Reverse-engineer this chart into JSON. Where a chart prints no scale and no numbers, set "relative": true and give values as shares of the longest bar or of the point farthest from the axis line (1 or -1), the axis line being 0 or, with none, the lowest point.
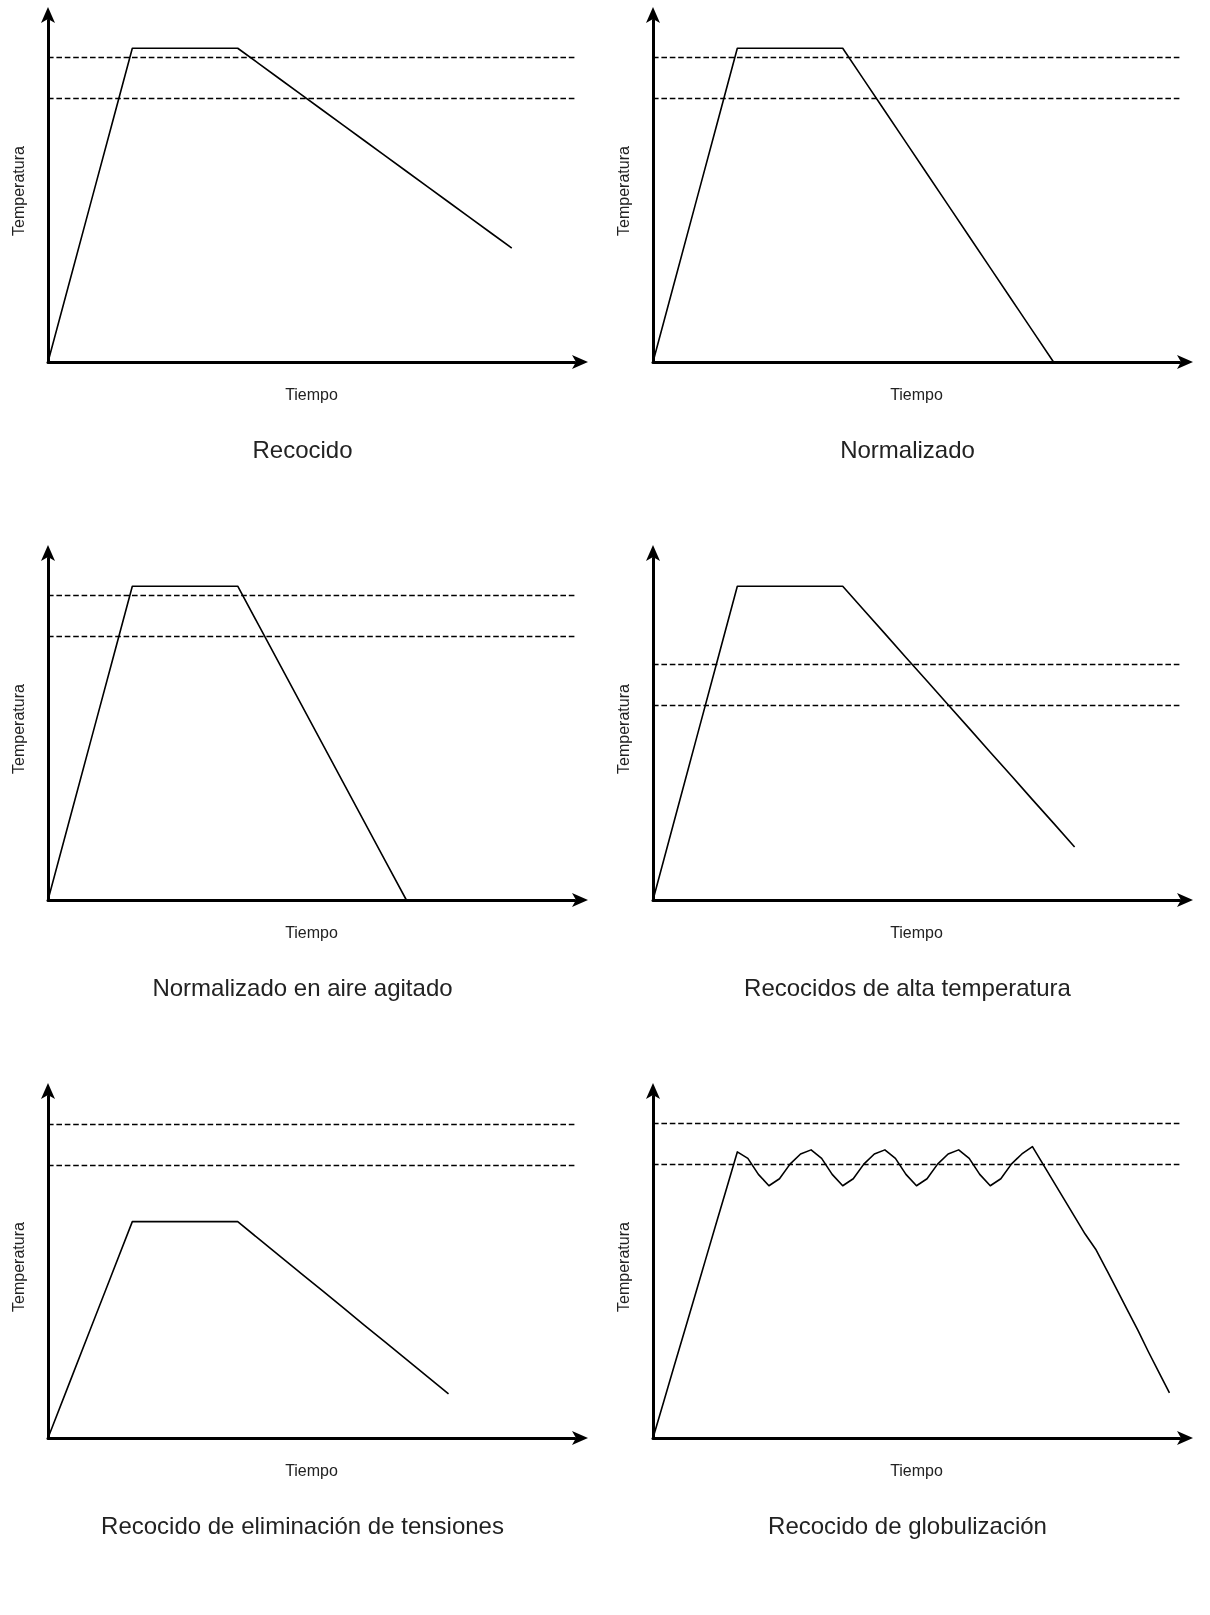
{
  "chart_data": [
    {
      "type": "line",
      "title": "Recocido",
      "xlabel": "Tiempo",
      "ylabel": "Temperatura",
      "relative": true,
      "grid": false,
      "marker": "none",
      "line_style": "solid",
      "color": "#000000",
      "categories": [
        null,
        null,
        null,
        null,
        null,
        null,
        null,
        null,
        null,
        null,
        null,
        null,
        null,
        null,
        null,
        null,
        null,
        null,
        null,
        null,
        null,
        null,
        null,
        null,
        null,
        null
      ],
      "values": [
        0,
        0.25,
        0.5,
        0.75,
        1,
        1,
        1,
        1,
        1,
        1,
        0.951,
        0.902,
        0.853,
        0.804,
        0.755,
        0.706,
        0.657,
        0.608,
        0.559,
        0.51,
        0.461,
        0.412,
        0.363,
        null,
        null,
        null
      ],
      "ref_lines": [
        {
          "axis": "y",
          "value": 0.971,
          "line_style": "dashed",
          "color": "#000000"
        },
        {
          "axis": "y",
          "value": 0.844,
          "line_style": "dashed",
          "color": "#000000"
        }
      ]
    },
    {
      "type": "line",
      "title": "Normalizado",
      "xlabel": "Tiempo",
      "ylabel": "Temperatura",
      "relative": true,
      "grid": false,
      "marker": "none",
      "line_style": "solid",
      "color": "#000000",
      "categories": [
        null,
        null,
        null,
        null,
        null,
        null,
        null,
        null,
        null,
        null,
        null,
        null,
        null,
        null,
        null,
        null,
        null,
        null,
        null,
        null,
        null,
        null,
        null,
        null,
        null,
        null
      ],
      "values": [
        0,
        0.25,
        0.5,
        0.75,
        1,
        1,
        1,
        1,
        1,
        1,
        0.9,
        0.8,
        0.7,
        0.6,
        0.5,
        0.4,
        0.3,
        0.2,
        0.1,
        0,
        null,
        null,
        null,
        null,
        null,
        null
      ],
      "ref_lines": [
        {
          "axis": "y",
          "value": 0.971,
          "line_style": "dashed",
          "color": "#000000"
        },
        {
          "axis": "y",
          "value": 0.844,
          "line_style": "dashed",
          "color": "#000000"
        }
      ]
    },
    {
      "type": "line",
      "title": "Normalizado en aire agitado",
      "xlabel": "Tiempo",
      "ylabel": "Temperatura",
      "relative": true,
      "grid": false,
      "marker": "none",
      "line_style": "solid",
      "color": "#000000",
      "categories": [
        null,
        null,
        null,
        null,
        null,
        null,
        null,
        null,
        null,
        null,
        null,
        null,
        null,
        null,
        null,
        null,
        null,
        null,
        null,
        null,
        null,
        null,
        null,
        null,
        null,
        null
      ],
      "values": [
        0,
        0.25,
        0.5,
        0.75,
        1,
        1,
        1,
        1,
        1,
        1,
        0.875,
        0.75,
        0.625,
        0.5,
        0.375,
        0.25,
        0.125,
        0,
        null,
        null,
        null,
        null,
        null,
        null,
        null,
        null
      ],
      "ref_lines": [
        {
          "axis": "y",
          "value": 0.971,
          "line_style": "dashed",
          "color": "#000000"
        },
        {
          "axis": "y",
          "value": 0.843,
          "line_style": "dashed",
          "color": "#000000"
        }
      ]
    },
    {
      "type": "line",
      "title": "Recocidos de alta temperatura",
      "xlabel": "Tiempo",
      "ylabel": "Temperatura",
      "relative": true,
      "grid": false,
      "marker": "none",
      "line_style": "solid",
      "color": "#000000",
      "categories": [
        null,
        null,
        null,
        null,
        null,
        null,
        null,
        null,
        null,
        null,
        null,
        null,
        null,
        null,
        null,
        null,
        null,
        null,
        null,
        null,
        null,
        null,
        null,
        null,
        null,
        null
      ],
      "values": [
        0,
        0.25,
        0.5,
        0.75,
        1,
        1,
        1,
        1,
        1,
        1,
        0.924,
        0.849,
        0.773,
        0.698,
        0.622,
        0.547,
        0.471,
        0.396,
        0.32,
        0.245,
        0.169,
        null,
        null,
        null,
        null,
        null
      ],
      "ref_lines": [
        {
          "axis": "y",
          "value": 0.748,
          "line_style": "dashed",
          "color": "#000000"
        },
        {
          "axis": "y",
          "value": 0.623,
          "line_style": "dashed",
          "color": "#000000"
        }
      ]
    },
    {
      "type": "line",
      "title": "Recocido de eliminación de tensiones",
      "xlabel": "Tiempo",
      "ylabel": "Temperatura",
      "relative": true,
      "grid": false,
      "marker": "none",
      "line_style": "solid",
      "color": "#000000",
      "categories": [
        null,
        null,
        null,
        null,
        null,
        null,
        null,
        null,
        null,
        null,
        null,
        null,
        null,
        null,
        null,
        null,
        null,
        null,
        null,
        null,
        null,
        null,
        null,
        null,
        null,
        null
      ],
      "values": [
        0,
        0.25,
        0.5,
        0.75,
        1,
        1,
        1,
        1,
        1,
        1,
        0.92,
        0.841,
        0.761,
        0.682,
        0.602,
        0.522,
        0.443,
        0.363,
        0.284,
        0.204,
        null,
        null,
        null,
        null,
        null,
        null
      ],
      "ref_lines": [
        {
          "axis": "y",
          "value": 1.45,
          "line_style": "dashed",
          "color": "#000000"
        },
        {
          "axis": "y",
          "value": 1.261,
          "line_style": "dashed",
          "color": "#000000"
        }
      ]
    },
    {
      "type": "line",
      "title": "Recocido de globulización",
      "xlabel": "Tiempo",
      "ylabel": "Temperatura",
      "relative": true,
      "grid": false,
      "marker": "none",
      "line_style": "solid",
      "color": "#000000",
      "categories": [
        null,
        null,
        null,
        null,
        null,
        null,
        null,
        null,
        null,
        null,
        null,
        null,
        null,
        null,
        null,
        null,
        null,
        null,
        null,
        null,
        null,
        null,
        null,
        null,
        null,
        null,
        null,
        null,
        null,
        null,
        null,
        null,
        null,
        null,
        null,
        null,
        null,
        null,
        null,
        null,
        null,
        null,
        null,
        null,
        null,
        null,
        null,
        null,
        null,
        null,
        null
      ],
      "values": [
        0,
        0.123,
        0.246,
        0.368,
        0.491,
        0.614,
        0.737,
        0.859,
        0.982,
        0.96,
        0.905,
        0.866,
        0.89,
        0.94,
        0.975,
        0.989,
        0.96,
        0.905,
        0.866,
        0.89,
        0.94,
        0.975,
        0.989,
        0.96,
        0.905,
        0.866,
        0.89,
        0.94,
        0.975,
        0.989,
        0.96,
        0.905,
        0.866,
        0.89,
        0.94,
        0.975,
        1,
        0.94,
        0.88,
        0.82,
        0.76,
        0.7,
        0.648,
        0.58,
        0.51,
        0.44,
        0.37,
        0.296,
        0.225,
        0.155,
        null
      ],
      "ref_lines": [
        {
          "axis": "y",
          "value": 1.077,
          "line_style": "dashed",
          "color": "#000000"
        },
        {
          "axis": "y",
          "value": 0.937,
          "line_style": "dashed",
          "color": "#000000"
        }
      ]
    }
  ]
}
